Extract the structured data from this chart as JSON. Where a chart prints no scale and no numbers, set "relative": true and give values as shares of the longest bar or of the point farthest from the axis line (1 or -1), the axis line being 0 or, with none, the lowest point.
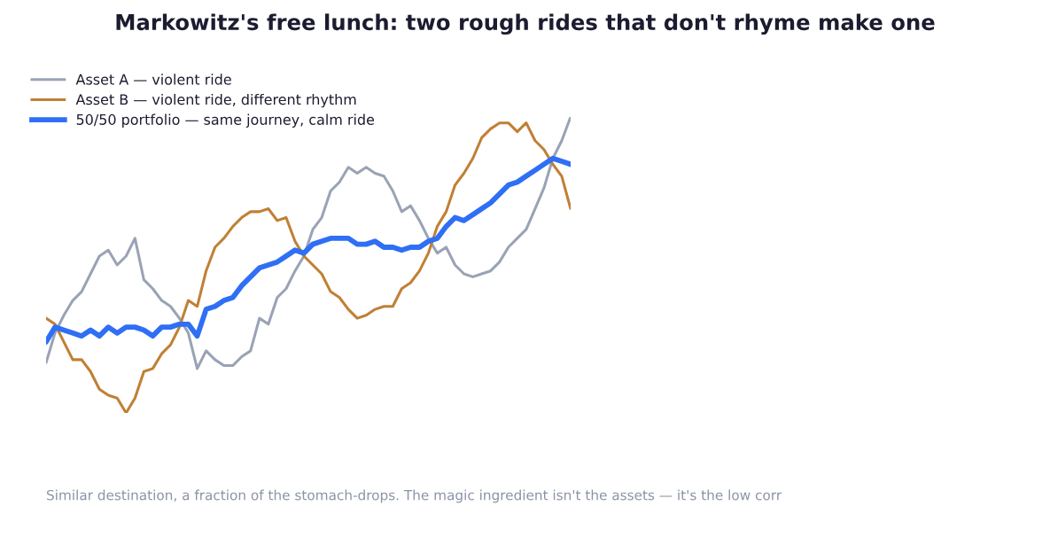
{
  "chart_data": {
    "type": "line",
    "relative": true,
    "title": "Markowitz's free lunch: two rough rides that don't rhyme make one",
    "categories": [
      null,
      null,
      null,
      null,
      null,
      null,
      null,
      null,
      null,
      null,
      null,
      null,
      null,
      null,
      null,
      null,
      null,
      null,
      null,
      null,
      null,
      null,
      null,
      null,
      null,
      null,
      null,
      null,
      null,
      null,
      null,
      null,
      null,
      null,
      null,
      null,
      null,
      null,
      null,
      null,
      null,
      null,
      null,
      null,
      null,
      null,
      null,
      null,
      null,
      null,
      null,
      null,
      null,
      null,
      null,
      null,
      null,
      null,
      null,
      null
    ],
    "series": [
      {
        "name": "Asset A — violent ride",
        "color": "#9aa3b5",
        "values": [
          0.17,
          0.27,
          0.33,
          0.38,
          0.41,
          0.47,
          0.53,
          0.55,
          0.5,
          0.53,
          0.59,
          0.45,
          0.42,
          0.38,
          0.36,
          0.32,
          0.27,
          0.15,
          0.21,
          0.18,
          0.16,
          0.16,
          0.19,
          0.21,
          0.32,
          0.3,
          0.39,
          0.42,
          0.48,
          0.53,
          0.62,
          0.66,
          0.75,
          0.78,
          0.83,
          0.81,
          0.83,
          0.81,
          0.8,
          0.75,
          0.68,
          0.7,
          0.65,
          0.59,
          0.54,
          0.56,
          0.5,
          0.47,
          0.46,
          0.47,
          0.48,
          0.51,
          0.56,
          0.59,
          0.62,
          0.69,
          0.76,
          0.86,
          0.92,
          1.0
        ]
      },
      {
        "name": "Asset B — violent ride, different rhythm",
        "color": "#c08035",
        "values": [
          0.32,
          0.3,
          0.24,
          0.18,
          0.18,
          0.14,
          0.08,
          0.06,
          0.05,
          0.0,
          0.05,
          0.14,
          0.15,
          0.2,
          0.23,
          0.29,
          0.38,
          0.36,
          0.48,
          0.56,
          0.59,
          0.63,
          0.66,
          0.68,
          0.68,
          0.69,
          0.65,
          0.66,
          0.58,
          0.53,
          0.5,
          0.47,
          0.41,
          0.39,
          0.35,
          0.32,
          0.33,
          0.35,
          0.36,
          0.36,
          0.42,
          0.44,
          0.48,
          0.54,
          0.63,
          0.68,
          0.77,
          0.81,
          0.86,
          0.93,
          0.96,
          0.98,
          0.98,
          0.95,
          0.98,
          0.92,
          0.89,
          0.84,
          0.8,
          0.69
        ]
      },
      {
        "name": "50/50 portfolio — same journey, calm ride",
        "color": "#2f6ff5",
        "values": [
          0.24,
          0.29,
          0.28,
          0.27,
          0.26,
          0.28,
          0.26,
          0.29,
          0.27,
          0.29,
          0.29,
          0.28,
          0.26,
          0.29,
          0.29,
          0.3,
          0.3,
          0.26,
          0.35,
          0.36,
          0.38,
          0.39,
          0.43,
          0.46,
          0.49,
          0.5,
          0.51,
          0.53,
          0.55,
          0.54,
          0.57,
          0.58,
          0.59,
          0.59,
          0.59,
          0.57,
          0.57,
          0.58,
          0.56,
          0.56,
          0.55,
          0.56,
          0.56,
          0.58,
          0.59,
          0.63,
          0.66,
          0.65,
          0.67,
          0.69,
          0.71,
          0.74,
          0.77,
          0.78,
          0.8,
          0.82,
          0.84,
          0.86,
          0.85,
          0.84
        ]
      }
    ],
    "legend": "top left",
    "annotations": [
      "Similar destination, a fraction of the stomach-drops. The magic ingredient isn't the assets — it's the low corr"
    ]
  }
}
